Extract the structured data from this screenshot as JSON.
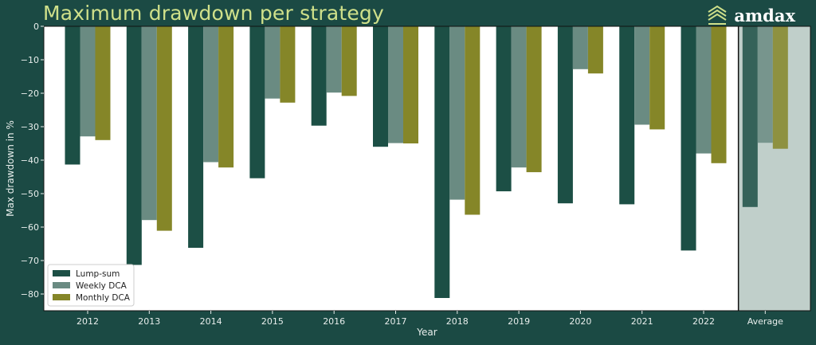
{
  "header": {
    "title": "Maximum drawdown per strategy",
    "brand": "amdax"
  },
  "colors": {
    "background": "#1b4a44",
    "plot_bg": "#ffffff",
    "average_bg": "#c0cfca",
    "title": "#cfe08a",
    "axis_text": "#e8eeec"
  },
  "chart_data": {
    "type": "bar",
    "title": "Maximum drawdown per strategy",
    "xlabel": "Year",
    "ylabel": "Max drawdown in %",
    "ylim": [
      -85,
      0
    ],
    "yticks": [
      0,
      -10,
      -20,
      -30,
      -40,
      -50,
      -60,
      -70,
      -80
    ],
    "categories": [
      "2012",
      "2013",
      "2014",
      "2015",
      "2016",
      "2017",
      "2018",
      "2019",
      "2020",
      "2021",
      "2022",
      "Average"
    ],
    "series": [
      {
        "name": "Lump-sum",
        "color": "#1c4f45",
        "values": [
          -41.3,
          -71.3,
          -66.2,
          -45.4,
          -29.7,
          -36.0,
          -81.2,
          -49.3,
          -52.9,
          -53.2,
          -67.0,
          -54.0
        ]
      },
      {
        "name": "Weekly DCA",
        "color": "#6a8b82",
        "values": [
          -32.9,
          -57.9,
          -40.6,
          -21.6,
          -19.8,
          -34.9,
          -51.8,
          -42.2,
          -12.8,
          -29.4,
          -38.0,
          -34.8
        ]
      },
      {
        "name": "Monthly DCA",
        "color": "#858628",
        "values": [
          -34.0,
          -61.1,
          -42.2,
          -22.8,
          -20.8,
          -35.0,
          -56.3,
          -43.6,
          -14.1,
          -30.8,
          -40.9,
          -36.6
        ]
      }
    ],
    "highlighted_category": "Average",
    "legend_position": "bottom-left",
    "grid": false
  }
}
